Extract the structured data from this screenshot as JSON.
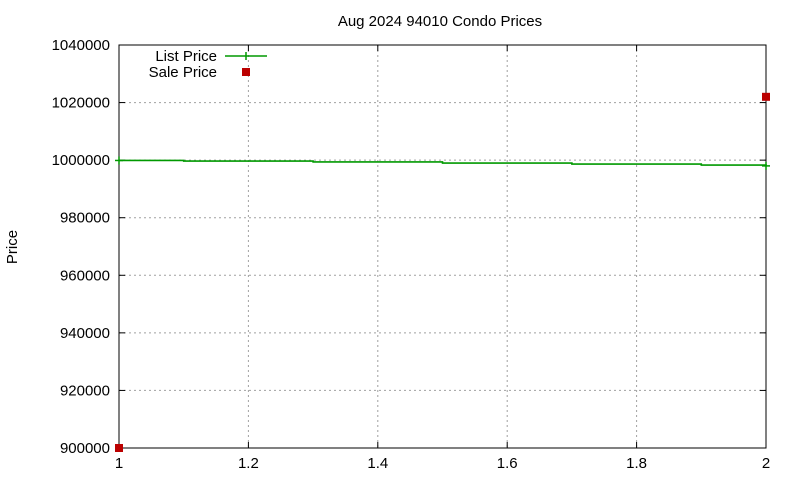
{
  "chart_data": {
    "type": "line",
    "title": "Aug 2024 94010 Condo Prices",
    "xlabel": "",
    "ylabel": "Price",
    "xlim": [
      1,
      2
    ],
    "ylim": [
      900000,
      1040000
    ],
    "x_ticks": [
      "1",
      "1.2",
      "1.4",
      "1.6",
      "1.8",
      "2"
    ],
    "x_tick_values": [
      1,
      1.2,
      1.4,
      1.6,
      1.8,
      2
    ],
    "y_ticks": [
      "900000",
      "920000",
      "940000",
      "960000",
      "980000",
      "1000000",
      "1020000",
      "1040000"
    ],
    "y_tick_values": [
      900000,
      920000,
      940000,
      960000,
      980000,
      1000000,
      1020000,
      1040000
    ],
    "grid": true,
    "legend_position": "top-left",
    "series": [
      {
        "name": "List Price",
        "kind": "step-line",
        "color": "#009900",
        "marker": "plus",
        "x": [
          1,
          1.1,
          1.3,
          1.5,
          1.7,
          1.9,
          2
        ],
        "y": [
          999888,
          999681,
          999361,
          999001,
          998641,
          998281,
          998000
        ],
        "marker_x": [
          1,
          2
        ],
        "marker_y": [
          999888,
          998000
        ]
      },
      {
        "name": "Sale Price",
        "kind": "scatter",
        "color": "#bb0000",
        "marker": "square",
        "x": [
          1,
          2
        ],
        "y": [
          900000,
          1022000
        ]
      }
    ]
  }
}
